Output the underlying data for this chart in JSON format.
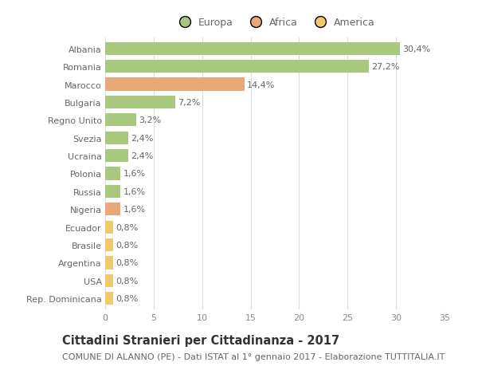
{
  "countries": [
    "Albania",
    "Romania",
    "Marocco",
    "Bulgaria",
    "Regno Unito",
    "Svezia",
    "Ucraina",
    "Polonia",
    "Russia",
    "Nigeria",
    "Ecuador",
    "Brasile",
    "Argentina",
    "USA",
    "Rep. Dominicana"
  ],
  "values": [
    30.4,
    27.2,
    14.4,
    7.2,
    3.2,
    2.4,
    2.4,
    1.6,
    1.6,
    1.6,
    0.8,
    0.8,
    0.8,
    0.8,
    0.8
  ],
  "continents": [
    "Europa",
    "Europa",
    "Africa",
    "Europa",
    "Europa",
    "Europa",
    "Europa",
    "Europa",
    "Europa",
    "Africa",
    "America",
    "America",
    "America",
    "America",
    "America"
  ],
  "colors": {
    "Europa": "#a8c87e",
    "Africa": "#e8a878",
    "America": "#efc96a"
  },
  "xlim": [
    0,
    35
  ],
  "xticks": [
    0,
    5,
    10,
    15,
    20,
    25,
    30,
    35
  ],
  "title": "Cittadini Stranieri per Cittadinanza - 2017",
  "subtitle": "COMUNE DI ALANNO (PE) - Dati ISTAT al 1° gennaio 2017 - Elaborazione TUTTITALIA.IT",
  "background_color": "#ffffff",
  "grid_color": "#dddddd",
  "bar_height": 0.72,
  "title_fontsize": 10.5,
  "subtitle_fontsize": 8,
  "label_fontsize": 8,
  "tick_fontsize": 8,
  "legend_fontsize": 9,
  "label_color": "#666666",
  "tick_color": "#888888"
}
